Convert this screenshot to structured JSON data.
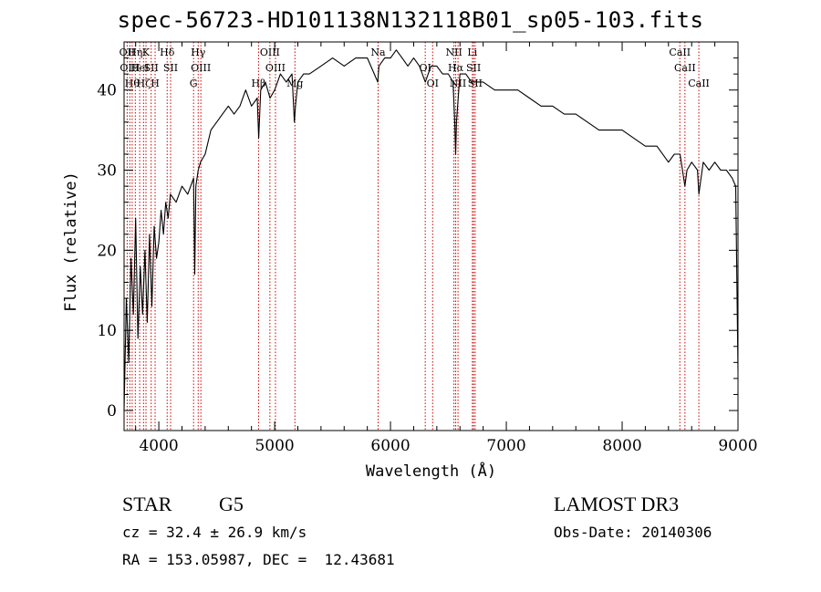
{
  "chart_data": {
    "type": "line",
    "title": "spec-56723-HD101138N132118B01_sp05-103.fits",
    "xlabel": "Wavelength (Å)",
    "ylabel": "Flux (relative)",
    "xlim": [
      3700,
      9000
    ],
    "ylim": [
      -2.5,
      46
    ],
    "xticks": [
      4000,
      5000,
      6000,
      7000,
      8000,
      9000
    ],
    "yticks": [
      0,
      10,
      20,
      30,
      40
    ],
    "grid": false,
    "series": [
      {
        "name": "spectrum",
        "x": [
          3700,
          3720,
          3740,
          3760,
          3780,
          3800,
          3820,
          3840,
          3860,
          3880,
          3900,
          3920,
          3940,
          3960,
          3980,
          4000,
          4020,
          4040,
          4060,
          4080,
          4100,
          4150,
          4200,
          4250,
          4300,
          4310,
          4320,
          4340,
          4360,
          4400,
          4450,
          4500,
          4550,
          4600,
          4650,
          4700,
          4750,
          4800,
          4850,
          4862,
          4880,
          4920,
          4960,
          5000,
          5050,
          5100,
          5150,
          5170,
          5180,
          5200,
          5250,
          5300,
          5400,
          5500,
          5600,
          5700,
          5800,
          5890,
          5900,
          5950,
          6000,
          6050,
          6100,
          6150,
          6200,
          6250,
          6300,
          6350,
          6400,
          6450,
          6500,
          6540,
          6555,
          6563,
          6570,
          6600,
          6650,
          6700,
          6750,
          6800,
          6900,
          7000,
          7100,
          7200,
          7300,
          7400,
          7500,
          7600,
          7700,
          7800,
          7900,
          8000,
          8100,
          8200,
          8300,
          8400,
          8450,
          8500,
          8542,
          8560,
          8600,
          8650,
          8662,
          8700,
          8750,
          8800,
          8850,
          8900,
          8950,
          8980,
          9000
        ],
        "y": [
          0,
          14,
          6,
          19,
          12,
          24,
          9,
          18,
          12,
          20,
          11,
          22,
          13,
          23,
          19,
          21,
          25,
          22,
          26,
          24,
          27,
          26,
          28,
          27,
          29,
          17,
          28,
          30,
          31,
          32,
          35,
          36,
          37,
          38,
          37,
          38,
          40,
          38,
          39,
          34,
          40,
          41,
          39,
          40,
          42,
          41,
          42,
          36,
          38,
          41,
          42,
          42,
          43,
          44,
          43,
          44,
          44,
          41,
          43,
          44,
          44,
          45,
          44,
          43,
          44,
          43,
          41,
          43,
          43,
          42,
          42,
          41,
          36,
          32,
          36,
          42,
          42,
          41,
          41,
          41,
          40,
          40,
          40,
          39,
          38,
          38,
          37,
          37,
          36,
          35,
          35,
          35,
          34,
          33,
          33,
          31,
          32,
          32,
          28,
          30,
          31,
          30,
          27,
          31,
          30,
          31,
          30,
          30,
          29,
          28,
          5
        ]
      }
    ],
    "lines": [
      {
        "x": 3727,
        "label": "OII"
      },
      {
        "x": 3750,
        "label": "OIII"
      },
      {
        "x": 3770,
        "label": "Hθ"
      },
      {
        "x": 3797,
        "label": "Hη"
      },
      {
        "x": 3835,
        "label": "HeI"
      },
      {
        "x": 3868,
        "label": "Hζ"
      },
      {
        "x": 3889,
        "label": "K"
      },
      {
        "x": 3934,
        "label": "SII"
      },
      {
        "x": 3968,
        "label": "H"
      },
      {
        "x": 4072,
        "label": "Hδ"
      },
      {
        "x": 4102,
        "label": "SII"
      },
      {
        "x": 4300,
        "label": "G"
      },
      {
        "x": 4340,
        "label": "Hγ"
      },
      {
        "x": 4363,
        "label": "OIII"
      },
      {
        "x": 4861,
        "label": "Hβ"
      },
      {
        "x": 4959,
        "label": "OIII"
      },
      {
        "x": 5007,
        "label": "OIII"
      },
      {
        "x": 5175,
        "label": "Mg"
      },
      {
        "x": 5893,
        "label": "Na"
      },
      {
        "x": 6300,
        "label": "OI"
      },
      {
        "x": 6364,
        "label": "OI"
      },
      {
        "x": 6548,
        "label": "NII"
      },
      {
        "x": 6563,
        "label": "Hα"
      },
      {
        "x": 6583,
        "label": "NII"
      },
      {
        "x": 6707,
        "label": "Li"
      },
      {
        "x": 6717,
        "label": "SII"
      },
      {
        "x": 6731,
        "label": "SII"
      },
      {
        "x": 8498,
        "label": "CaII"
      },
      {
        "x": 8542,
        "label": "CaII"
      },
      {
        "x": 8662,
        "label": "CaII"
      }
    ]
  },
  "info": {
    "object_type": "STAR",
    "subclass": "G5",
    "survey": "LAMOST DR3",
    "cz": "cz = 32.4 ± 26.9 km/s",
    "obs_date": "Obs-Date: 20140306",
    "coords": "RA = 153.05987, DEC =  12.43681"
  },
  "colors": {
    "axis": "#000000",
    "spectrum": "#000000",
    "line_marker": "#cc0000"
  }
}
